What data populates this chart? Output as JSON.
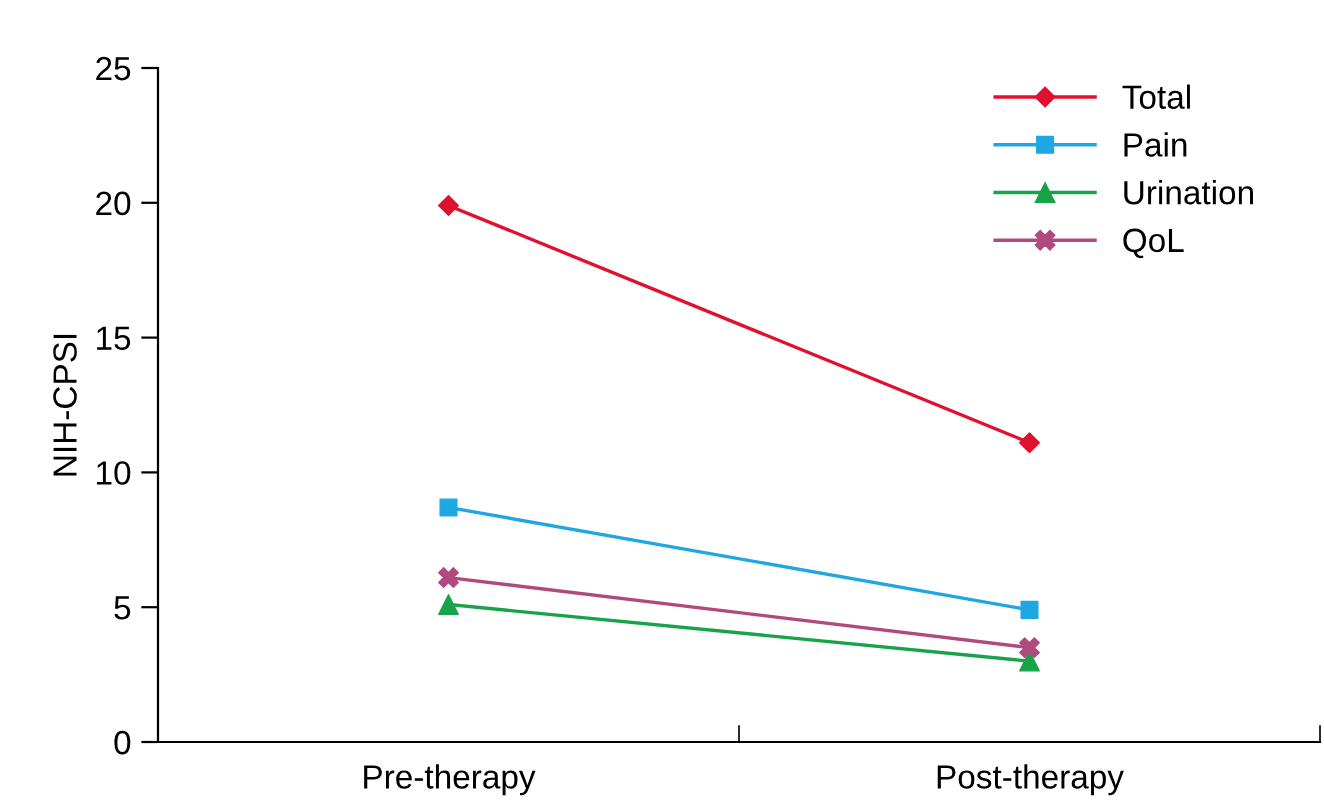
{
  "chart_data": {
    "type": "line",
    "ylabel": "NIH-CPSI",
    "categories": [
      "Pre-therapy",
      "Post-therapy"
    ],
    "series": [
      {
        "name": "Total",
        "color": "#e0102f",
        "marker": "diamond",
        "values": [
          19.9,
          11.1
        ]
      },
      {
        "name": "Pain",
        "color": "#1ea7e1",
        "marker": "square",
        "values": [
          8.7,
          4.9
        ]
      },
      {
        "name": "Urination",
        "color": "#16a34a",
        "marker": "triangle",
        "values": [
          5.1,
          3.0
        ]
      },
      {
        "name": "QoL",
        "color": "#b0497f",
        "marker": "cross",
        "values": [
          6.1,
          3.5
        ]
      }
    ],
    "ylim": [
      0,
      25
    ],
    "yticks": [
      0,
      5,
      10,
      15,
      20,
      25
    ],
    "grid": false,
    "legend": "top right",
    "line_style": "solid"
  }
}
